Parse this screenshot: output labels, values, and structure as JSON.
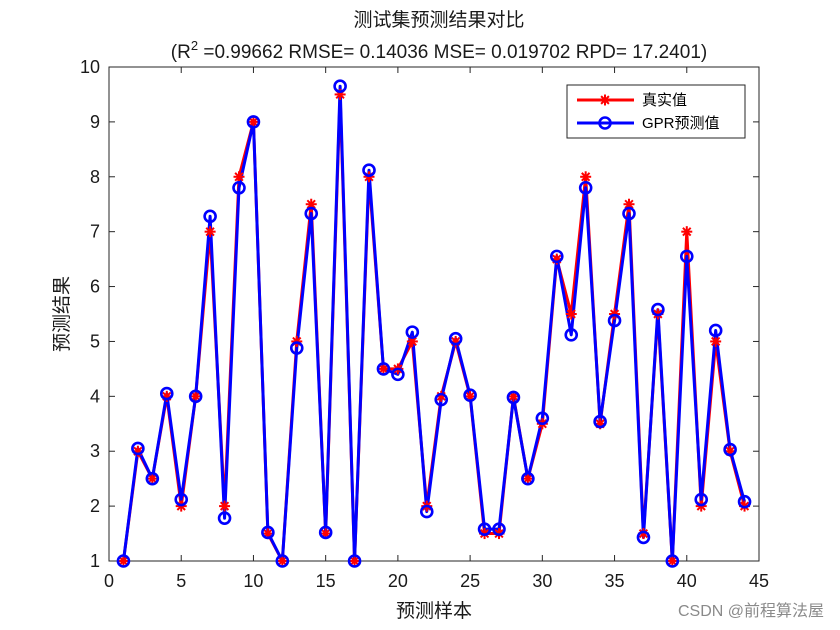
{
  "chart_data": {
    "type": "line",
    "title": "测试集预测结果对比",
    "subtitle_prefix": "(R",
    "subtitle_sup": "2",
    "subtitle_rest": " =0.99662 RMSE= 0.14036 MSE= 0.019702 RPD= 17.2401)",
    "xlabel": "预测样本",
    "ylabel": "预测结果",
    "xlim": [
      0,
      45
    ],
    "ylim": [
      1,
      10
    ],
    "xticks": [
      "0",
      "5",
      "10",
      "15",
      "20",
      "25",
      "30",
      "35",
      "40",
      "45"
    ],
    "yticks": [
      "1",
      "2",
      "3",
      "4",
      "5",
      "6",
      "7",
      "8",
      "9",
      "10"
    ],
    "legend_position": "top-right",
    "x": [
      1,
      2,
      3,
      4,
      5,
      6,
      7,
      8,
      9,
      10,
      11,
      12,
      13,
      14,
      15,
      16,
      17,
      18,
      19,
      20,
      21,
      22,
      23,
      24,
      25,
      26,
      27,
      28,
      29,
      30,
      31,
      32,
      33,
      34,
      35,
      36,
      37,
      38,
      39,
      40,
      41,
      42,
      43,
      44
    ],
    "series": [
      {
        "name": "真实值",
        "color": "#ff0000",
        "marker": "asterisk",
        "values": [
          1,
          3,
          2.5,
          4,
          2,
          4,
          7,
          2,
          8,
          9,
          1.5,
          1,
          5,
          7.5,
          1.5,
          9.5,
          1,
          8,
          4.5,
          4.5,
          5,
          2,
          4,
          5,
          4,
          1.5,
          1.5,
          4,
          2.5,
          3.5,
          6.5,
          5.5,
          8,
          3.5,
          5.5,
          7.5,
          1.5,
          5.5,
          1,
          7,
          2,
          5,
          3,
          2
        ]
      },
      {
        "name": "GPR预测值",
        "color": "#0000ff",
        "marker": "circle",
        "values": [
          1.0,
          3.05,
          2.5,
          4.05,
          2.12,
          4.0,
          7.28,
          1.78,
          7.8,
          9.0,
          1.52,
          1.0,
          4.88,
          7.33,
          1.52,
          9.65,
          1.0,
          8.12,
          4.5,
          4.4,
          5.17,
          1.9,
          3.94,
          5.05,
          4.02,
          1.58,
          1.58,
          3.98,
          2.5,
          3.6,
          6.55,
          5.12,
          7.8,
          3.54,
          5.38,
          7.33,
          1.43,
          5.58,
          1.0,
          6.55,
          2.12,
          5.2,
          3.03,
          2.08
        ]
      }
    ],
    "grid": false
  },
  "watermark": "CSDN @前程算法屋"
}
